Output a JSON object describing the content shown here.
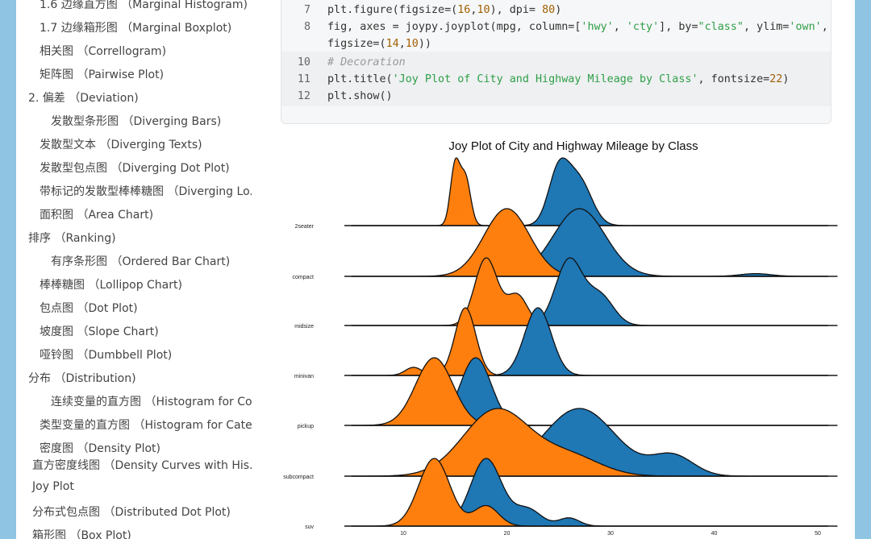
{
  "sidebar": {
    "items": [
      {
        "label": "1.6 边缘直方图 （Marginal Histogram)"
      },
      {
        "label": "1.7 边缘箱形图 （Marginal Boxplot)"
      },
      {
        "label": "相关图 （Correllogram)"
      },
      {
        "label": "矩阵图 （Pairwise Plot)"
      },
      {
        "label": "2. 偏差 （Deviation)"
      },
      {
        "label": "发散型条形图 （Diverging Bars)"
      },
      {
        "label": "发散型文本 （Diverging Texts)"
      },
      {
        "label": "发散型包点图 （Diverging Dot Plot)"
      },
      {
        "label": "带标记的发散型棒棒糖图 （Diverging Lo..."
      },
      {
        "label": "面积图 （Area Chart)"
      },
      {
        "label": "排序 （Ranking)"
      },
      {
        "label": "有序条形图 （Ordered Bar Chart)"
      },
      {
        "label": "棒棒糖图 （Lollipop Chart)"
      },
      {
        "label": "包点图 （Dot Plot)"
      },
      {
        "label": "坡度图 （Slope Chart)"
      },
      {
        "label": "哑铃图 （Dumbbell Plot)"
      },
      {
        "label": "分布 （Distribution)"
      },
      {
        "label": "连续变量的直方图 （Histogram for Co..."
      },
      {
        "label": "类型变量的直方图 （Histogram for Cate..."
      },
      {
        "label": "密度图 （Density Plot)"
      },
      {
        "label": "直方密度线图 （Density Curves with His..."
      },
      {
        "label": "Joy Plot"
      },
      {
        "label": "分布式包点图 （Distributed Dot Plot)"
      },
      {
        "label": "箱形图 （Box Plot)"
      }
    ]
  },
  "code": {
    "lines": [
      {
        "num": "7",
        "tokens": [
          [
            "",
            "plt.figure(figsize=("
          ],
          [
            "n",
            "16"
          ],
          [
            "",
            ","
          ],
          [
            "n",
            "10"
          ],
          [
            "",
            "), dpi= "
          ],
          [
            "n",
            "80"
          ],
          [
            "",
            ")"
          ]
        ]
      },
      {
        "num": "8",
        "tokens": [
          [
            "",
            "fig, axes = joypy.joyplot(mpg, column=["
          ],
          [
            "s",
            "'hwy'"
          ],
          [
            "",
            ", "
          ],
          [
            "s",
            "'cty'"
          ],
          [
            "",
            "], by="
          ],
          [
            "s",
            "\"class\""
          ],
          [
            "",
            ", ylim="
          ],
          [
            "s",
            "'own'"
          ],
          [
            "",
            ","
          ]
        ]
      },
      {
        "num": "",
        "tokens": [
          [
            "",
            "figsize=("
          ],
          [
            "n",
            "14"
          ],
          [
            "",
            ","
          ],
          [
            "n",
            "10"
          ],
          [
            "",
            "))"
          ]
        ]
      },
      {
        "num": "10",
        "tokens": [
          [
            "c",
            "# Decoration"
          ]
        ]
      },
      {
        "num": "11",
        "tokens": [
          [
            "",
            "plt.title("
          ],
          [
            "s",
            "'Joy Plot of City and Highway Mileage by Class'"
          ],
          [
            "",
            ", fontsize="
          ],
          [
            "n",
            "22"
          ],
          [
            "",
            ")"
          ]
        ]
      },
      {
        "num": "12",
        "tokens": [
          [
            "",
            "plt.show()"
          ]
        ]
      }
    ]
  },
  "chart_data": {
    "type": "area",
    "title": "Joy Plot of City and Highway Mileage by Class",
    "xlabel": "",
    "ylabel": "",
    "x_ticks": [
      10,
      20,
      30,
      40,
      50
    ],
    "xlim": [
      10,
      50
    ],
    "grid": false,
    "categories": [
      "2seater",
      "compact",
      "midsize",
      "minivan",
      "pickup",
      "subcompact",
      "suv"
    ],
    "series": [
      {
        "name": "cty",
        "color": "#ff7f0e",
        "peaks": [
          [
            [
              15,
              1.0,
              0.45
            ],
            [
              16,
              0.8,
              0.5
            ]
          ],
          [
            [
              20,
              1.0,
              2.2
            ]
          ],
          [
            [
              18,
              1.0,
              1.1
            ],
            [
              21,
              0.45,
              1.0
            ]
          ],
          [
            [
              16,
              1.0,
              1.0
            ],
            [
              11,
              0.12,
              0.8
            ]
          ],
          [
            [
              13,
              1.0,
              1.8
            ]
          ],
          [
            [
              19,
              1.0,
              3.2
            ],
            [
              26,
              0.3,
              3.0
            ]
          ],
          [
            [
              13,
              1.0,
              1.5
            ],
            [
              18,
              0.3,
              1.2
            ]
          ]
        ]
      },
      {
        "name": "hwy",
        "color": "#1f77b4",
        "peaks": [
          [
            [
              25,
              0.55,
              1.0
            ],
            [
              27,
              0.45,
              1.2
            ]
          ],
          [
            [
              27,
              1.0,
              2.5
            ],
            [
              44,
              0.04,
              1.5
            ]
          ],
          [
            [
              26,
              1.0,
              1.3
            ],
            [
              29,
              0.45,
              1.3
            ]
          ],
          [
            [
              23,
              1.0,
              1.3
            ]
          ],
          [
            [
              17,
              1.0,
              1.5
            ]
          ],
          [
            [
              27,
              1.0,
              3.5
            ],
            [
              36,
              0.3,
              2.0
            ]
          ],
          [
            [
              18,
              1.0,
              1.5
            ],
            [
              22,
              0.25,
              1.3
            ],
            [
              26,
              0.12,
              1.0
            ]
          ]
        ]
      }
    ]
  }
}
